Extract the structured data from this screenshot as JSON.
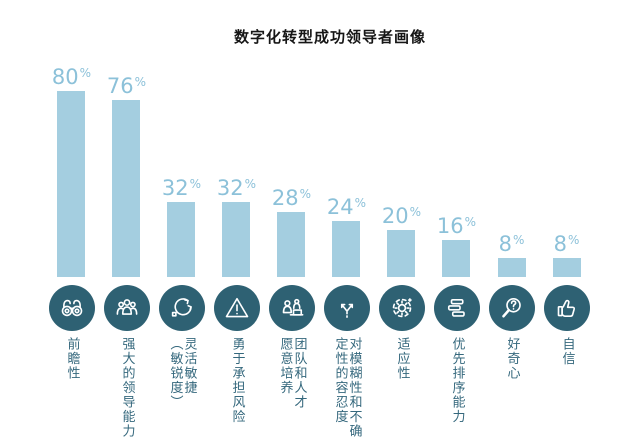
{
  "title": "数字化转型成功领导者画像",
  "chart_data": {
    "type": "bar",
    "title": "数字化转型成功领导者画像",
    "unit": "%",
    "categories": [
      "前瞻性",
      "强大的领导能力",
      "灵活敏捷（敏锐度）",
      "勇于承担风险",
      "团队和人才愿意培养",
      "对模糊性和不确定性的容忍度",
      "适应性",
      "优先排序能力",
      "好奇心",
      "自信"
    ],
    "categories_display": [
      "前瞻性",
      "强大的领导能力",
      "灵活敏捷\n（敏锐度）",
      "勇于承担风险",
      "团队和人才\n愿意培养",
      "对模糊性和不确\n定性的容忍度",
      "适应性",
      "优先排序能力",
      "好奇心",
      "自信"
    ],
    "values": [
      80,
      76,
      32,
      32,
      28,
      24,
      20,
      16,
      8,
      8
    ],
    "ylim": [
      0,
      100
    ],
    "grid": false,
    "legend": false,
    "icons": [
      "binoculars-icon",
      "team-leadership-icon",
      "agile-cycle-icon",
      "warning-triangle-icon",
      "talent-development-icon",
      "fork-paths-icon",
      "adaptability-gear-icon",
      "priority-list-icon",
      "curiosity-magnifier-icon",
      "thumbs-up-icon"
    ],
    "colors": {
      "bar": "#a4cee0",
      "value_label": "#8cc1d9",
      "icon_circle": "#2e6173",
      "category_label": "#35687d",
      "title": "#161616"
    }
  }
}
